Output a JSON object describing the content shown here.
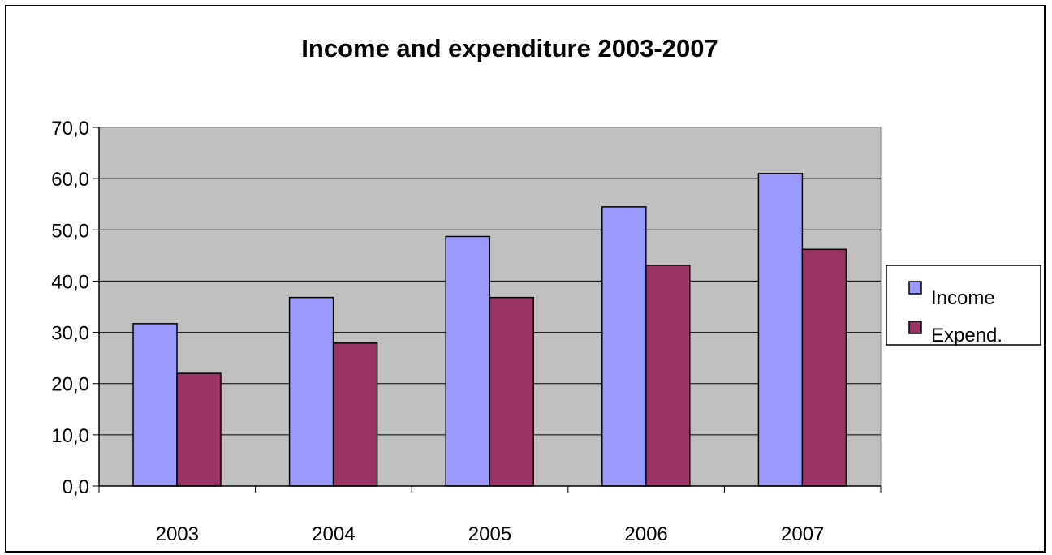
{
  "chart_data": {
    "type": "bar",
    "title": "Income and expenditure 2003-2007",
    "categories": [
      "2003",
      "2004",
      "2005",
      "2006",
      "2007"
    ],
    "series": [
      {
        "name": "Income",
        "values": [
          31.7,
          36.8,
          48.7,
          54.5,
          61.0
        ],
        "color": "#9999ff"
      },
      {
        "name": "Expend.",
        "values": [
          22.0,
          27.9,
          36.8,
          43.1,
          46.2
        ],
        "color": "#993366"
      }
    ],
    "ylim": [
      0,
      70
    ],
    "ytick_labels": [
      "0,0",
      "10,0",
      "20,0",
      "30,0",
      "40,0",
      "50,0",
      "60,0",
      "70,0"
    ],
    "grid": true,
    "plot_background": "#c0c0c0",
    "legend_position": "right"
  }
}
